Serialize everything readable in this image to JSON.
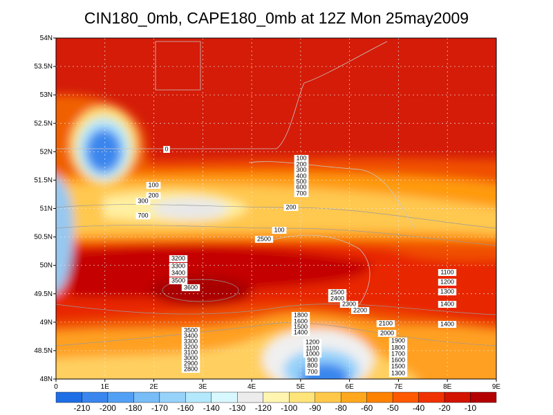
{
  "map": {
    "title": "CIN180_0mb, CAPE180_0mb at 12Z Mon 25may2009",
    "xlim": [
      0,
      9
    ],
    "ylim": [
      48,
      54
    ],
    "xticks": [
      0,
      {
        "value": 1,
        "label": "1E"
      },
      {
        "value": 2,
        "label": "2E"
      },
      {
        "value": 3,
        "label": "3E"
      },
      {
        "value": 4,
        "label": "4E"
      },
      {
        "value": 5,
        "label": "5E"
      },
      {
        "value": 6,
        "label": "6E"
      },
      {
        "value": 7,
        "label": "7E"
      },
      {
        "value": 8,
        "label": "8E"
      },
      {
        "value": 9,
        "label": "9E"
      }
    ],
    "yticks": [
      {
        "value": 48,
        "label": "48N"
      },
      {
        "value": 48.5,
        "label": "48.5N"
      },
      {
        "value": 49,
        "label": "49N"
      },
      {
        "value": 49.5,
        "label": "49.5N"
      },
      {
        "value": 50,
        "label": "50N"
      },
      {
        "value": 50.5,
        "label": "50.5N"
      },
      {
        "value": 51,
        "label": "51N"
      },
      {
        "value": 51.5,
        "label": "51.5N"
      },
      {
        "value": 52,
        "label": "52N"
      },
      {
        "value": 52.5,
        "label": "52.5N"
      },
      {
        "value": 53,
        "label": "53N"
      },
      {
        "value": 53.5,
        "label": "53.5N"
      },
      {
        "value": 54,
        "label": "54N"
      }
    ],
    "grid": true,
    "contour_labels": [
      "0",
      "100",
      "200",
      "300",
      "700",
      "100",
      "200",
      "300",
      "400",
      "500",
      "600",
      "700",
      "200",
      "100",
      "2500",
      "3200",
      "3300",
      "3400",
      "3500",
      "3600",
      "2500",
      "2400",
      "2300",
      "2200",
      "2100",
      "2000",
      "1900",
      "1800",
      "1700",
      "1600",
      "1500",
      "1300",
      "1100",
      "1200",
      "1300",
      "1400",
      "1400",
      "1800",
      "1600",
      "1500",
      "1400",
      "1200",
      "1100",
      "1000",
      "900",
      "800",
      "700",
      "3500",
      "3400",
      "3300",
      "3200",
      "3100",
      "3000",
      "2900",
      "2800"
    ],
    "colorbar": {
      "colors": [
        "#1e6ee6",
        "#3a86ee",
        "#52a0f5",
        "#78bcf8",
        "#96d2fa",
        "#b4e8fc",
        "#d8f8ff",
        "#ececec",
        "#fff5b0",
        "#ffe47a",
        "#ffc84a",
        "#ffa81e",
        "#ff8200",
        "#ff5a00",
        "#f03200",
        "#d21400",
        "#b40000"
      ],
      "ticks": [
        -210,
        -200,
        -180,
        -170,
        -160,
        -140,
        -130,
        -120,
        -100,
        -90,
        -80,
        -60,
        -50,
        -40,
        -20,
        -10
      ]
    }
  }
}
